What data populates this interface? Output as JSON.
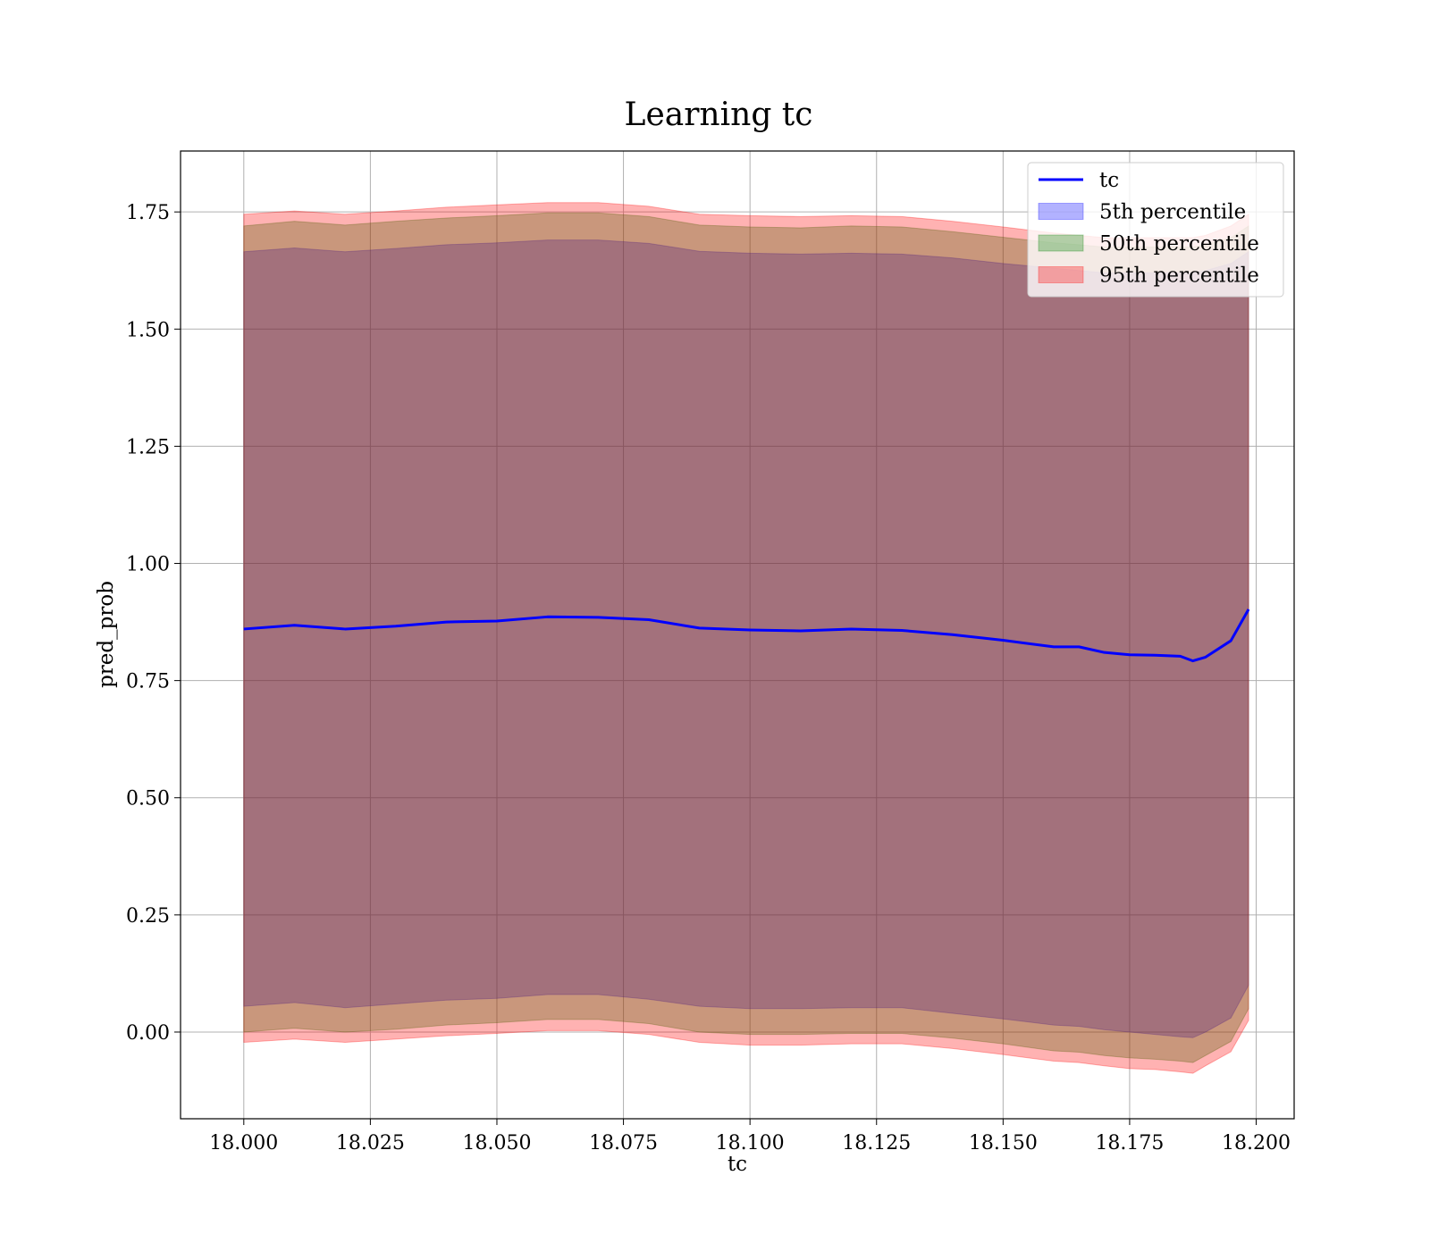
{
  "chart_data": {
    "type": "line",
    "title": "Learning tc",
    "xlabel": "tc",
    "ylabel": "pred_prob",
    "xlim": [
      17.9875,
      18.2075
    ],
    "ylim": [
      -0.185,
      1.88
    ],
    "xticks": [
      18.0,
      18.025,
      18.05,
      18.075,
      18.1,
      18.125,
      18.15,
      18.175,
      18.2
    ],
    "xtick_labels": [
      "18.000",
      "18.025",
      "18.050",
      "18.075",
      "18.100",
      "18.125",
      "18.150",
      "18.175",
      "18.200"
    ],
    "yticks": [
      0.0,
      0.25,
      0.5,
      0.75,
      1.0,
      1.25,
      1.5,
      1.75
    ],
    "ytick_labels": [
      "0.00",
      "0.25",
      "0.50",
      "0.75",
      "1.00",
      "1.25",
      "1.50",
      "1.75"
    ],
    "grid": true,
    "legend_position": "top-right",
    "x": [
      18.0,
      18.01,
      18.02,
      18.03,
      18.04,
      18.05,
      18.06,
      18.07,
      18.08,
      18.09,
      18.1,
      18.11,
      18.12,
      18.13,
      18.14,
      18.15,
      18.16,
      18.165,
      18.17,
      18.175,
      18.18,
      18.185,
      18.1875,
      18.19,
      18.195,
      18.1985
    ],
    "series": [
      {
        "name": "tc",
        "kind": "line",
        "color": "#0000ff",
        "values": [
          0.86,
          0.868,
          0.86,
          0.866,
          0.875,
          0.877,
          0.886,
          0.885,
          0.88,
          0.862,
          0.858,
          0.856,
          0.86,
          0.857,
          0.848,
          0.836,
          0.822,
          0.822,
          0.81,
          0.805,
          0.804,
          0.802,
          0.792,
          0.8,
          0.835,
          0.902
        ]
      },
      {
        "name": "5th percentile",
        "kind": "band",
        "color": "#0000ff",
        "lower": [
          0.055,
          0.063,
          0.052,
          0.06,
          0.068,
          0.072,
          0.08,
          0.08,
          0.07,
          0.055,
          0.05,
          0.05,
          0.052,
          0.052,
          0.04,
          0.028,
          0.015,
          0.012,
          0.005,
          0.0,
          -0.005,
          -0.01,
          -0.012,
          0.0,
          0.03,
          0.1
        ],
        "upper": [
          1.665,
          1.673,
          1.665,
          1.672,
          1.68,
          1.684,
          1.69,
          1.69,
          1.683,
          1.666,
          1.662,
          1.66,
          1.662,
          1.66,
          1.652,
          1.64,
          1.63,
          1.625,
          1.62,
          1.62,
          1.62,
          1.62,
          1.62,
          1.625,
          1.64,
          1.665
        ]
      },
      {
        "name": "50th percentile",
        "kind": "band",
        "color": "#008000",
        "lower": [
          0.0,
          0.008,
          0.0,
          0.006,
          0.015,
          0.02,
          0.027,
          0.027,
          0.018,
          0.0,
          -0.005,
          -0.005,
          -0.003,
          -0.003,
          -0.013,
          -0.025,
          -0.04,
          -0.043,
          -0.05,
          -0.055,
          -0.058,
          -0.062,
          -0.065,
          -0.05,
          -0.02,
          0.05
        ],
        "upper": [
          1.72,
          1.73,
          1.722,
          1.73,
          1.737,
          1.742,
          1.748,
          1.748,
          1.74,
          1.722,
          1.718,
          1.716,
          1.72,
          1.718,
          1.708,
          1.696,
          1.684,
          1.68,
          1.675,
          1.675,
          1.675,
          1.675,
          1.675,
          1.68,
          1.695,
          1.72
        ]
      },
      {
        "name": "95th percentile",
        "kind": "band",
        "color": "#ff0000",
        "lower": [
          -0.022,
          -0.015,
          -0.022,
          -0.015,
          -0.008,
          -0.003,
          0.003,
          0.003,
          -0.005,
          -0.022,
          -0.028,
          -0.028,
          -0.025,
          -0.025,
          -0.035,
          -0.048,
          -0.062,
          -0.065,
          -0.072,
          -0.078,
          -0.08,
          -0.085,
          -0.088,
          -0.072,
          -0.042,
          0.025
        ],
        "upper": [
          1.745,
          1.752,
          1.745,
          1.752,
          1.76,
          1.765,
          1.77,
          1.77,
          1.762,
          1.745,
          1.742,
          1.74,
          1.742,
          1.74,
          1.73,
          1.718,
          1.705,
          1.7,
          1.695,
          1.695,
          1.695,
          1.695,
          1.695,
          1.7,
          1.72,
          1.745
        ]
      }
    ]
  }
}
